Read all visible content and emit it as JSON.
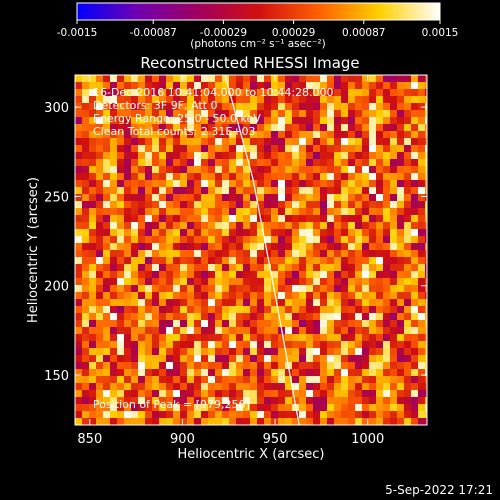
{
  "chart_data": {
    "type": "heatmap",
    "title": "Reconstructed RHESSI Image",
    "xlabel": "Heliocentric X (arcsec)",
    "ylabel": "Heliocentric Y (arcsec)",
    "xlim": [
      842,
      1032
    ],
    "ylim": [
      122,
      318
    ],
    "xticks": [
      "850",
      "900",
      "950",
      "1000"
    ],
    "xtick_values": [
      850,
      900,
      950,
      1000
    ],
    "yticks": [
      "150",
      "200",
      "250",
      "300"
    ],
    "ytick_values": [
      150,
      200,
      250,
      300
    ],
    "colorbar": {
      "ticks": [
        "-0.0015",
        "-0.00087",
        "-0.00029",
        "0.00029",
        "0.00087",
        "0.0015"
      ],
      "range": [
        -0.0015,
        0.0015
      ],
      "units_label": "(photons cm⁻² s⁻¹ asec⁻²)",
      "colormap": [
        "#0000ff",
        "#7000b0",
        "#a00060",
        "#d01010",
        "#ff6000",
        "#ffd000",
        "#ffffff"
      ]
    },
    "annotations": [
      "16-Dec-2016 10:41:04.000 to 10:44:28.000",
      "Detectors: 3F 9F, Att 0",
      "Energy Range: 25.0 - 50.0 keV",
      "Clean     Total counts: 2.31E+03"
    ],
    "peak_label": "Position of Peak = [979,256]",
    "limb_curve": {
      "x": [
        923,
        938,
        951,
        963
      ],
      "y": [
        318,
        260,
        190,
        122
      ]
    },
    "grid": false
  },
  "footer": {
    "date": "5-Sep-2022 17:21"
  }
}
